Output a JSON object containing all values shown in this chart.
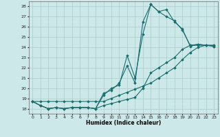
{
  "xlabel": "Humidex (Indice chaleur)",
  "bg_color": "#cce8e8",
  "grid_color": "#aacccc",
  "line_color": "#1a6e6e",
  "xlim": [
    -0.5,
    23.5
  ],
  "ylim": [
    17.5,
    28.5
  ],
  "xticks": [
    0,
    1,
    2,
    3,
    4,
    5,
    6,
    7,
    8,
    9,
    10,
    11,
    12,
    13,
    14,
    15,
    16,
    17,
    18,
    19,
    20,
    21,
    22,
    23
  ],
  "yticks": [
    18,
    19,
    20,
    21,
    22,
    23,
    24,
    25,
    26,
    27,
    28
  ],
  "series": [
    [
      18.7,
      18.3,
      18.0,
      18.1,
      18.0,
      18.1,
      18.1,
      18.1,
      18.0,
      19.3,
      20.0,
      20.3,
      23.2,
      21.0,
      25.3,
      28.2,
      27.5,
      27.7,
      26.5,
      25.8,
      24.1,
      24.3,
      24.2,
      24.1
    ],
    [
      18.7,
      18.3,
      18.0,
      18.1,
      18.0,
      18.1,
      18.1,
      18.1,
      18.0,
      19.5,
      19.8,
      20.5,
      22.2,
      20.5,
      26.5,
      28.2,
      27.5,
      27.0,
      26.6,
      25.7,
      24.2,
      24.2,
      24.2,
      24.2
    ],
    [
      18.7,
      18.7,
      18.7,
      18.7,
      18.7,
      18.7,
      18.7,
      18.7,
      18.7,
      18.7,
      19.0,
      19.3,
      19.6,
      19.9,
      20.2,
      20.5,
      21.0,
      21.5,
      22.0,
      22.8,
      23.5,
      24.0,
      24.2,
      24.2
    ],
    [
      18.7,
      18.3,
      18.0,
      18.1,
      18.0,
      18.1,
      18.1,
      18.1,
      18.0,
      18.3,
      18.5,
      18.7,
      18.9,
      19.1,
      20.0,
      21.5,
      22.0,
      22.5,
      23.0,
      23.8,
      24.2,
      24.3,
      24.2,
      24.1
    ]
  ]
}
